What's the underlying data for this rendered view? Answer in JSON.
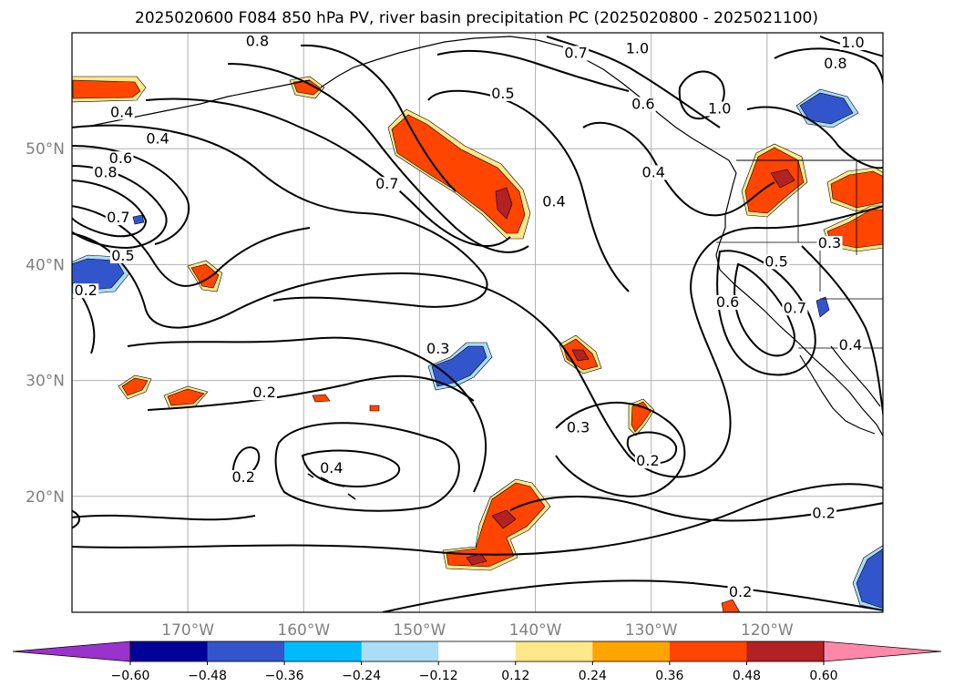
{
  "chart_data": {
    "type": "contour_map",
    "title": "2025020600 F084 850 hPa PV, river basin precipitation PC (2025020800 - 2025021100)",
    "lon_range": [
      -180,
      -110
    ],
    "lat_range": [
      10,
      60
    ],
    "grid": true,
    "x_ticks": [
      {
        "value": -170,
        "label": "170°W"
      },
      {
        "value": -160,
        "label": "160°W"
      },
      {
        "value": -150,
        "label": "150°W"
      },
      {
        "value": -140,
        "label": "140°W"
      },
      {
        "value": -130,
        "label": "130°W"
      },
      {
        "value": -120,
        "label": "120°W"
      }
    ],
    "y_ticks": [
      {
        "value": 20,
        "label": "20°N"
      },
      {
        "value": 30,
        "label": "30°N"
      },
      {
        "value": 40,
        "label": "40°N"
      },
      {
        "value": 50,
        "label": "50°N"
      }
    ],
    "colorbar": {
      "extend": "both",
      "colors": [
        "#9933cc",
        "#000099",
        "#3355cc",
        "#00bbff",
        "#aaddf8",
        "#ffffff",
        "#ffe88a",
        "#ffa500",
        "#ff4500",
        "#b22222",
        "#ff88aa"
      ],
      "tick_labels": [
        "−0.60",
        "−0.48",
        "−0.36",
        "−0.24",
        "−0.12",
        "0.12",
        "0.24",
        "0.36",
        "0.48",
        "0.60"
      ]
    },
    "contour_labels": [
      {
        "text": "0.8",
        "lon": -164,
        "lat": 59
      },
      {
        "text": "0.7",
        "lon": -136.5,
        "lat": 58
      },
      {
        "text": "1.0",
        "lon": -131.2,
        "lat": 58.4
      },
      {
        "text": "1.0",
        "lon": -112.6,
        "lat": 58.9
      },
      {
        "text": "0.8",
        "lon": -114.1,
        "lat": 57.1
      },
      {
        "text": "0.5",
        "lon": -142.8,
        "lat": 54.5
      },
      {
        "text": "0.6",
        "lon": -130.7,
        "lat": 53.6
      },
      {
        "text": "1.0",
        "lon": -124.1,
        "lat": 53.2
      },
      {
        "text": "0.4",
        "lon": -175.7,
        "lat": 52.9
      },
      {
        "text": "0.4",
        "lon": -172.6,
        "lat": 50.6
      },
      {
        "text": "0.6",
        "lon": -175.8,
        "lat": 48.9
      },
      {
        "text": "0.8",
        "lon": -177.1,
        "lat": 47.7
      },
      {
        "text": "0.7",
        "lon": -152.8,
        "lat": 46.7
      },
      {
        "text": "0.4",
        "lon": -129.8,
        "lat": 47.7
      },
      {
        "text": "0.4",
        "lon": -138.4,
        "lat": 45.2
      },
      {
        "text": "0.7",
        "lon": -176,
        "lat": 43.8
      },
      {
        "text": "0.5",
        "lon": -175.6,
        "lat": 40.5
      },
      {
        "text": "0.5",
        "lon": -119.2,
        "lat": 40
      },
      {
        "text": "0.3",
        "lon": -114.6,
        "lat": 41.6
      },
      {
        "text": "0.2",
        "lon": -178.8,
        "lat": 37.5
      },
      {
        "text": "0.6",
        "lon": -123.4,
        "lat": 36.5
      },
      {
        "text": "0.7",
        "lon": -117.6,
        "lat": 36
      },
      {
        "text": "0.3",
        "lon": -148.4,
        "lat": 32.5
      },
      {
        "text": "0.4",
        "lon": -112.8,
        "lat": 32.8
      },
      {
        "text": "0.2",
        "lon": -163.4,
        "lat": 28.7
      },
      {
        "text": "0.3",
        "lon": -136.3,
        "lat": 25.7
      },
      {
        "text": "0.2",
        "lon": -130.3,
        "lat": 22.8
      },
      {
        "text": "0.4",
        "lon": -157.6,
        "lat": 22.2
      },
      {
        "text": "0.2",
        "lon": -165.2,
        "lat": 21.4
      },
      {
        "text": "0.2",
        "lon": -115.1,
        "lat": 18.3
      },
      {
        "text": "0.2",
        "lon": -122.3,
        "lat": 11.5
      }
    ]
  }
}
